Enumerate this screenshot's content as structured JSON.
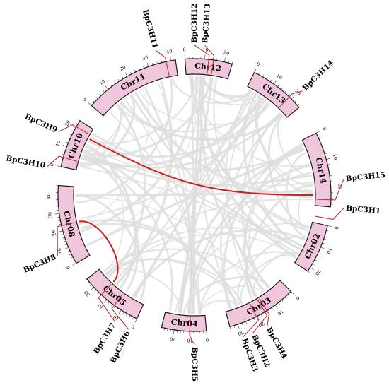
{
  "colors": {
    "chromosome_fill": "#f0c6dd",
    "chromosome_stroke": "#1a1a1a",
    "background_link": "#dedede",
    "highlight_link": "#cc1f1f",
    "gene_marker": "#c23030",
    "tick": "#333333"
  },
  "chromosomes": [
    {
      "name": "Chr12",
      "ticks": [
        "0",
        "10",
        "20"
      ]
    },
    {
      "name": "Chr13",
      "ticks": [
        "0",
        "10",
        "20"
      ]
    },
    {
      "name": "Chr14",
      "ticks": [
        "0",
        "10",
        "20"
      ]
    },
    {
      "name": "Chr02",
      "ticks": [
        "0",
        "10",
        "20"
      ]
    },
    {
      "name": "Chr03",
      "ticks": [
        "0",
        "10",
        "20",
        "30"
      ]
    },
    {
      "name": "Chr04",
      "ticks": [
        "0",
        "10",
        "20"
      ]
    },
    {
      "name": "Chr05",
      "ticks": [
        "0",
        "10",
        "20",
        "30"
      ]
    },
    {
      "name": "Chr08",
      "ticks": [
        "0",
        "10",
        "20",
        "30",
        "40"
      ]
    },
    {
      "name": "Chr10",
      "ticks": [
        "0",
        "10",
        "20"
      ]
    },
    {
      "name": "Chr11",
      "ticks": [
        "0",
        "10",
        "20",
        "30",
        "40"
      ]
    }
  ],
  "genes": [
    {
      "name": "BpC3H1"
    },
    {
      "name": "BpC3H2"
    },
    {
      "name": "BpC3H3"
    },
    {
      "name": "BpC3H4"
    },
    {
      "name": "BpC3H5"
    },
    {
      "name": "BpC3H6"
    },
    {
      "name": "BpC3H7"
    },
    {
      "name": "BpC3H8"
    },
    {
      "name": "BpC3H9"
    },
    {
      "name": "BpC3H10"
    },
    {
      "name": "BpC3H11"
    },
    {
      "name": "BpC3H12"
    },
    {
      "name": "BpC3H13"
    },
    {
      "name": "BpC3H14"
    },
    {
      "name": "BpC3H15"
    }
  ],
  "highlight_links": [
    {
      "from": "BpC3H9",
      "to": "BpC3H15"
    },
    {
      "from": "BpC3H8",
      "to": "BpC3H7"
    }
  ]
}
